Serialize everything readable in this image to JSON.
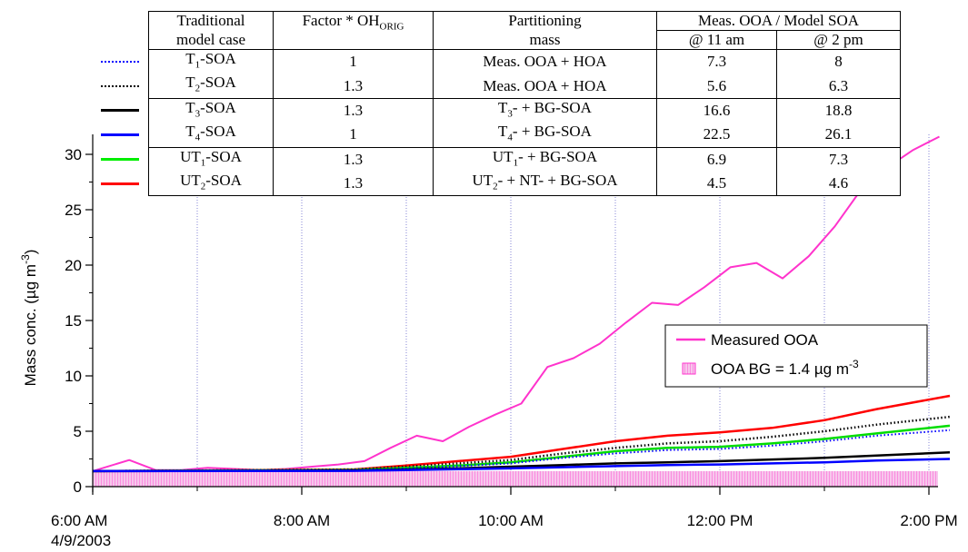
{
  "chart_data": {
    "type": "line",
    "xlabel": "",
    "ylabel": "Mass conc. (µg m",
    "ylabel_sup": "-3",
    "ylabel_close": ")",
    "ylim": [
      0,
      32
    ],
    "xlim_hours": [
      6.0,
      14.2
    ],
    "y_ticks": [
      "0",
      "5",
      "10",
      "15",
      "20",
      "25",
      "30"
    ],
    "y_tick_values": [
      0,
      5,
      10,
      15,
      20,
      25,
      30
    ],
    "x_ticks": [
      {
        "hour": 6,
        "label": "6:00 AM",
        "label2": "4/9/2003"
      },
      {
        "hour": 8,
        "label": "8:00 AM",
        "label2": ""
      },
      {
        "hour": 10,
        "label": "10:00 AM",
        "label2": ""
      },
      {
        "hour": 12,
        "label": "12:00 PM",
        "label2": ""
      },
      {
        "hour": 14,
        "label": "2:00 PM",
        "label2": ""
      }
    ],
    "x_minor_hours": [
      7,
      9,
      11,
      13
    ],
    "grid_hours": [
      7,
      8,
      9,
      10,
      11,
      12,
      13,
      14
    ],
    "legend": {
      "placement": "center-right",
      "items": [
        {
          "label": "Measured OOA",
          "label_sup": "",
          "kind": "line",
          "color": "#ff33cc"
        },
        {
          "label": "OOA BG = 1.4 µg m",
          "label_sup": "-3",
          "kind": "fill",
          "color": "#ff33cc"
        }
      ]
    },
    "background": {
      "name": "OOA BG",
      "value": 1.4,
      "color": "#ff33cc"
    },
    "series": [
      {
        "name": "Measured OOA",
        "color": "#ff33cc",
        "style": "solid",
        "width": 2,
        "x": [
          6.0,
          6.35,
          6.6,
          6.85,
          7.1,
          7.35,
          7.6,
          7.85,
          8.1,
          8.35,
          8.6,
          8.85,
          9.1,
          9.35,
          9.6,
          9.85,
          10.1,
          10.35,
          10.6,
          10.85,
          11.1,
          11.35,
          11.6,
          11.85,
          12.1,
          12.35,
          12.6,
          12.85,
          13.1,
          13.35,
          13.6,
          13.85,
          14.1
        ],
        "y": [
          1.4,
          2.4,
          1.5,
          1.5,
          1.7,
          1.6,
          1.5,
          1.6,
          1.8,
          2.0,
          2.3,
          3.5,
          4.6,
          4.1,
          5.4,
          6.5,
          7.5,
          10.8,
          11.6,
          12.9,
          14.8,
          16.6,
          16.4,
          18.0,
          19.8,
          20.2,
          18.8,
          20.8,
          23.5,
          26.8,
          28.8,
          30.4,
          31.6
        ]
      },
      {
        "name": "UT2-SOA",
        "color": "#ff0000",
        "style": "solid",
        "width": 2.5,
        "x": [
          6.0,
          8.5,
          9.0,
          9.5,
          10.0,
          10.5,
          11.0,
          11.5,
          12.0,
          12.5,
          13.0,
          13.5,
          14.2
        ],
        "y": [
          1.4,
          1.55,
          1.9,
          2.3,
          2.7,
          3.4,
          4.1,
          4.6,
          4.9,
          5.3,
          6.0,
          7.0,
          8.2
        ]
      },
      {
        "name": "T2-SOA",
        "color": "#000000",
        "style": "dotted",
        "width": 2.5,
        "x": [
          6.0,
          8.5,
          9.0,
          9.5,
          10.0,
          10.5,
          11.0,
          11.5,
          12.0,
          12.5,
          13.0,
          13.5,
          14.2
        ],
        "y": [
          1.4,
          1.55,
          1.8,
          2.1,
          2.4,
          3.0,
          3.5,
          3.9,
          4.1,
          4.5,
          5.0,
          5.6,
          6.3
        ]
      },
      {
        "name": "UT1-SOA",
        "color": "#00dd00",
        "style": "solid",
        "width": 2.5,
        "x": [
          6.0,
          8.5,
          9.0,
          9.5,
          10.0,
          10.5,
          11.0,
          11.5,
          12.0,
          12.5,
          13.0,
          13.5,
          14.2
        ],
        "y": [
          1.4,
          1.5,
          1.7,
          1.9,
          2.2,
          2.7,
          3.2,
          3.5,
          3.6,
          3.9,
          4.3,
          4.8,
          5.5
        ]
      },
      {
        "name": "T1-SOA",
        "color": "#0000ff",
        "style": "dotted",
        "width": 2,
        "x": [
          6.0,
          8.5,
          9.0,
          9.5,
          10.0,
          10.5,
          11.0,
          11.5,
          12.0,
          12.5,
          13.0,
          13.5,
          14.2
        ],
        "y": [
          1.4,
          1.5,
          1.65,
          1.85,
          2.1,
          2.6,
          3.0,
          3.3,
          3.4,
          3.7,
          4.1,
          4.6,
          5.1
        ]
      },
      {
        "name": "T3-SOA",
        "color": "#000000",
        "style": "solid",
        "width": 2.5,
        "x": [
          6.0,
          8.5,
          9.0,
          9.5,
          10.0,
          10.5,
          11.0,
          11.5,
          12.0,
          12.5,
          13.0,
          13.5,
          14.2
        ],
        "y": [
          1.4,
          1.45,
          1.55,
          1.65,
          1.8,
          1.95,
          2.1,
          2.2,
          2.3,
          2.45,
          2.6,
          2.8,
          3.1
        ]
      },
      {
        "name": "T4-SOA",
        "color": "#0000ff",
        "style": "solid",
        "width": 2.5,
        "x": [
          6.0,
          8.5,
          9.0,
          9.5,
          10.0,
          10.5,
          11.0,
          11.5,
          12.0,
          12.5,
          13.0,
          13.5,
          14.2
        ],
        "y": [
          1.4,
          1.43,
          1.5,
          1.57,
          1.65,
          1.75,
          1.85,
          1.95,
          2.0,
          2.1,
          2.2,
          2.35,
          2.5
        ]
      }
    ]
  },
  "table": {
    "headers": {
      "model_case_line1": "Traditional",
      "model_case_line2": "model case",
      "factor_main": "Factor * OH",
      "factor_sub": "ORIG",
      "partition_line1": "Partitioning",
      "partition_line2": "mass",
      "ratio": "Meas. OOA / Model SOA",
      "at11": "@ 11 am",
      "at2": "@ 2 pm"
    },
    "rows": [
      {
        "color": "#0000ff",
        "style": "dotted",
        "case_pre": "T",
        "case_sub": "1",
        "case_post": "-SOA",
        "factor": "1",
        "mass_pre": "Meas. OOA + HOA",
        "mass_sub": "",
        "mass_post": "",
        "am11": "7.3",
        "pm2": "8"
      },
      {
        "color": "#000000",
        "style": "dotted",
        "case_pre": "T",
        "case_sub": "2",
        "case_post": "-SOA",
        "factor": "1.3",
        "mass_pre": "Meas. OOA + HOA",
        "mass_sub": "",
        "mass_post": "",
        "am11": "5.6",
        "pm2": "6.3"
      },
      {
        "color": "#000000",
        "style": "solid",
        "case_pre": "T",
        "case_sub": "3",
        "case_post": "-SOA",
        "factor": "1.3",
        "mass_pre": "T",
        "mass_sub": "3",
        "mass_post": "- + BG-SOA",
        "am11": "16.6",
        "pm2": "18.8"
      },
      {
        "color": "#0000ff",
        "style": "solid",
        "case_pre": "T",
        "case_sub": "4",
        "case_post": "-SOA",
        "factor": "1",
        "mass_pre": "T",
        "mass_sub": "4",
        "mass_post": "- + BG-SOA",
        "am11": "22.5",
        "pm2": "26.1"
      },
      {
        "color": "#00ee00",
        "style": "solid",
        "case_pre": "UT",
        "case_sub": "1",
        "case_post": "-SOA",
        "factor": "1.3",
        "mass_pre": "UT",
        "mass_sub": "1",
        "mass_post": "- + BG-SOA",
        "am11": "6.9",
        "pm2": "7.3"
      },
      {
        "color": "#ff0000",
        "style": "solid",
        "case_pre": "UT",
        "case_sub": "2",
        "case_post": "-SOA",
        "factor": "1.3",
        "mass_pre": "UT",
        "mass_sub": "2",
        "mass_post": "- + NT- + BG-SOA",
        "am11": "4.5",
        "pm2": "4.6"
      }
    ]
  }
}
